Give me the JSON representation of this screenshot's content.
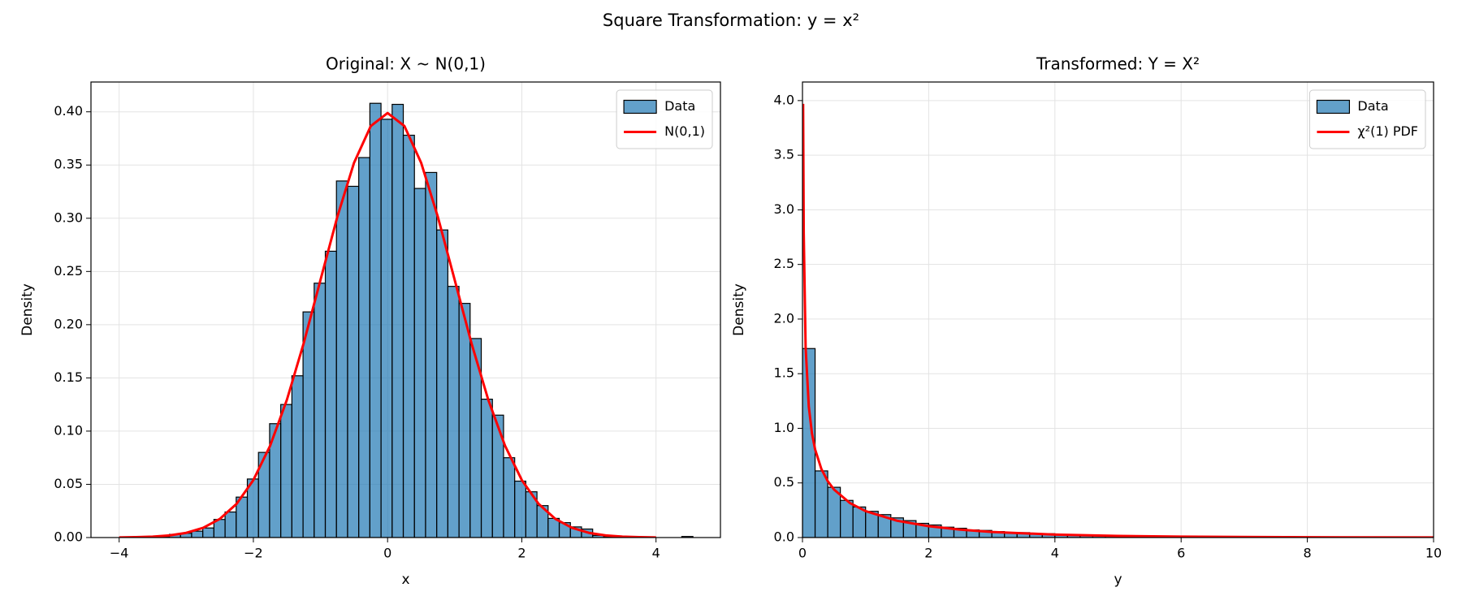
{
  "title": "Square Transformation: y = x²",
  "chart_data": [
    {
      "type": "histogram",
      "title": "Original: X ~ N(0,1)",
      "xlabel": "x",
      "ylabel": "Density",
      "bins": [
        -3.75,
        -3.584,
        -3.418,
        -3.252,
        -3.086,
        -2.92,
        -2.754,
        -2.588,
        -2.422,
        -2.256,
        -2.09,
        -1.924,
        -1.758,
        -1.592,
        -1.426,
        -1.26,
        -1.094,
        -0.928,
        -0.762,
        -0.596,
        -0.43,
        -0.264,
        -0.098,
        0.068,
        0.234,
        0.4,
        0.566,
        0.732,
        0.898,
        1.064,
        1.23,
        1.396,
        1.562,
        1.728,
        1.894,
        2.06,
        2.226,
        2.392,
        2.558,
        2.724,
        2.89,
        3.056,
        3.222,
        3.388,
        3.554,
        3.72,
        3.886,
        4.052,
        4.218,
        4.384,
        4.55
      ],
      "series": [
        {
          "name": "Data",
          "color": "#1f77b4",
          "values": [
            0.0005,
            0,
            0.001,
            0.003,
            0.004,
            0.006,
            0.009,
            0.017,
            0.024,
            0.038,
            0.055,
            0.08,
            0.107,
            0.125,
            0.152,
            0.212,
            0.239,
            0.269,
            0.335,
            0.33,
            0.357,
            0.408,
            0.393,
            0.407,
            0.378,
            0.328,
            0.343,
            0.289,
            0.236,
            0.22,
            0.187,
            0.13,
            0.115,
            0.075,
            0.053,
            0.043,
            0.03,
            0.018,
            0.014,
            0.01,
            0.008,
            0.002,
            0.001,
            0.001,
            0,
            0,
            0,
            0,
            0,
            0.001
          ]
        },
        {
          "name": "N(0,1)",
          "type": "line",
          "color": "#ff0000",
          "x": [
            -4,
            -3.75,
            -3.5,
            -3.25,
            -3,
            -2.75,
            -2.5,
            -2.25,
            -2,
            -1.75,
            -1.5,
            -1.25,
            -1,
            -0.75,
            -0.5,
            -0.25,
            0,
            0.25,
            0.5,
            0.75,
            1,
            1.25,
            1.5,
            1.75,
            2,
            2.25,
            2.5,
            2.75,
            3,
            3.25,
            3.5,
            3.75,
            4
          ],
          "values": [
            0.0001,
            0.0004,
            0.0009,
            0.002,
            0.0044,
            0.0091,
            0.0175,
            0.0317,
            0.054,
            0.0863,
            0.1295,
            0.1826,
            0.242,
            0.3011,
            0.3521,
            0.3867,
            0.3989,
            0.3867,
            0.3521,
            0.3011,
            0.242,
            0.1826,
            0.1295,
            0.0863,
            0.054,
            0.0317,
            0.0175,
            0.0091,
            0.0044,
            0.002,
            0.0009,
            0.0004,
            0.0001
          ]
        }
      ],
      "xlim": [
        -4.42,
        4.96
      ],
      "ylim": [
        0,
        0.428
      ],
      "xticks": [
        {
          "value": -4,
          "label": "−4"
        },
        {
          "value": -2,
          "label": "−2"
        },
        0,
        2,
        4
      ],
      "yticks": [
        {
          "value": 0,
          "label": "0.00"
        },
        0.05,
        {
          "value": 0.1,
          "label": "0.10"
        },
        0.15,
        {
          "value": 0.2,
          "label": "0.20"
        },
        0.25,
        {
          "value": 0.3,
          "label": "0.30"
        },
        0.35,
        {
          "value": 0.4,
          "label": "0.40"
        }
      ],
      "grid": true,
      "legend": "upper right"
    },
    {
      "type": "histogram",
      "title": "Transformed: Y = X²",
      "xlabel": "y",
      "ylabel": "Density",
      "bins": [
        0,
        0.2,
        0.4,
        0.6,
        0.8,
        1,
        1.2,
        1.4,
        1.6,
        1.8,
        2,
        2.2,
        2.4,
        2.6,
        2.8,
        3,
        3.2,
        3.4,
        3.6,
        3.8,
        4,
        4.2,
        4.4,
        4.6,
        4.8,
        5,
        5.2,
        5.4,
        5.6,
        5.8,
        6,
        6.2,
        6.4,
        6.6,
        6.8,
        7,
        7.2,
        7.4,
        7.6,
        7.8,
        8,
        8.2,
        8.4,
        8.6,
        8.8,
        9,
        9.2,
        9.4,
        9.6,
        9.8,
        10
      ],
      "series": [
        {
          "name": "Data",
          "color": "#1f77b4",
          "values": [
            1.73,
            0.61,
            0.46,
            0.34,
            0.28,
            0.24,
            0.21,
            0.18,
            0.155,
            0.13,
            0.115,
            0.095,
            0.085,
            0.07,
            0.065,
            0.055,
            0.045,
            0.045,
            0.035,
            0.035,
            0.025,
            0.023,
            0.02,
            0.018,
            0.016,
            0.014,
            0.012,
            0.011,
            0.01,
            0.009,
            0.008,
            0.007,
            0.006,
            0.006,
            0.005,
            0.005,
            0.004,
            0.004,
            0.003,
            0.003,
            0.003,
            0.002,
            0.002,
            0.002,
            0.002,
            0.002,
            0.001,
            0.001,
            0.001,
            0.001
          ]
        },
        {
          "name": "χ²(1) PDF",
          "type": "line",
          "color": "#ff0000",
          "x": [
            0.01,
            0.02,
            0.05,
            0.1,
            0.15,
            0.2,
            0.3,
            0.4,
            0.5,
            0.75,
            1,
            1.5,
            2,
            2.5,
            3,
            4,
            5,
            6,
            8,
            10
          ],
          "values": [
            3.97,
            2.793,
            1.74,
            1.2,
            0.9556,
            0.8072,
            0.6269,
            0.5164,
            0.4394,
            0.3166,
            0.242,
            0.1539,
            0.1038,
            0.0723,
            0.0514,
            0.027,
            0.0146,
            0.0081,
            0.0026,
            0.0008
          ]
        }
      ],
      "xlim": [
        0,
        10
      ],
      "ylim": [
        0,
        4.17
      ],
      "xticks": [
        0,
        2,
        4,
        6,
        8,
        10
      ],
      "yticks": [
        {
          "value": 0,
          "label": "0.0"
        },
        0.5,
        {
          "value": 1,
          "label": "1.0"
        },
        1.5,
        {
          "value": 2,
          "label": "2.0"
        },
        2.5,
        {
          "value": 3,
          "label": "3.0"
        },
        3.5,
        {
          "value": 4,
          "label": "4.0"
        }
      ],
      "grid": true,
      "legend": "upper right"
    }
  ]
}
